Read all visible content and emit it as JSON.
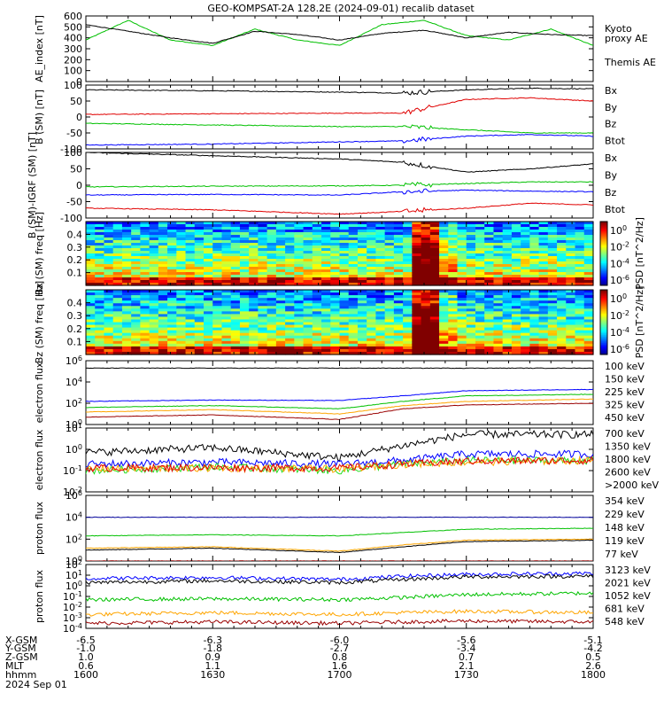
{
  "title": "GEO-KOMPSAT-2A 128.2E (2024-09-01) recalib dataset",
  "colors": {
    "black": "#000000",
    "blue": "#0000ff",
    "green": "#00c000",
    "red": "#e00000",
    "orange": "#ffa500",
    "darkred": "#9a0000",
    "lightgreen": "#22dd22",
    "navy": "#00009a"
  },
  "chart_data": [
    {
      "id": "ae",
      "type": "line",
      "ylabel": "AE_index [nT]",
      "ylim": [
        0,
        600
      ],
      "yticks": [
        "600",
        "500",
        "400",
        "300",
        "200",
        "100",
        "0"
      ],
      "series": [
        {
          "name": "Kyoto proxy AE",
          "color": "#00c000",
          "x": [
            1600,
            1610,
            1620,
            1630,
            1640,
            1650,
            1700,
            1710,
            1720,
            1730,
            1740,
            1750,
            1760,
            1770,
            1780,
            1790,
            1800
          ],
          "values": [
            380,
            560,
            380,
            330,
            480,
            380,
            330,
            520,
            560,
            420,
            380,
            480,
            330,
            300,
            430,
            520,
            380
          ]
        },
        {
          "name": "Themis AE",
          "color": "#000000",
          "x": [
            1600,
            1610,
            1620,
            1630,
            1640,
            1650,
            1700,
            1710,
            1720,
            1730,
            1740,
            1750,
            1760,
            1770,
            1780,
            1790,
            1800
          ],
          "values": [
            520,
            460,
            400,
            350,
            460,
            430,
            380,
            440,
            470,
            400,
            450,
            430,
            420,
            440,
            430,
            440,
            600
          ]
        }
      ],
      "legend": [
        "Kyoto",
        "proxy AE",
        "Themis AE"
      ]
    },
    {
      "id": "bsm",
      "type": "line",
      "ylabel": "B (SM) [nT]",
      "ylim": [
        -100,
        100
      ],
      "yticks": [
        "100",
        "50",
        "0",
        "-50",
        "-100"
      ],
      "series": [
        {
          "name": "Bx",
          "color": "#000000",
          "x": [
            1600,
            1630,
            1700,
            1715,
            1730,
            1745,
            1800
          ],
          "values": [
            85,
            82,
            78,
            75,
            85,
            90,
            88
          ]
        },
        {
          "name": "By",
          "color": "#e00000",
          "x": [
            1600,
            1630,
            1700,
            1715,
            1730,
            1745,
            1800
          ],
          "values": [
            8,
            10,
            12,
            12,
            55,
            60,
            50
          ]
        },
        {
          "name": "Bz",
          "color": "#00c000",
          "x": [
            1600,
            1630,
            1700,
            1715,
            1730,
            1745,
            1800
          ],
          "values": [
            -20,
            -25,
            -30,
            -30,
            -40,
            -50,
            -50
          ]
        },
        {
          "name": "Btot",
          "color": "#0000ff",
          "x": [
            1600,
            1630,
            1700,
            1715,
            1730,
            1745,
            1800
          ],
          "values": [
            -88,
            -85,
            -78,
            -75,
            -60,
            -55,
            -60
          ]
        }
      ],
      "legend": [
        "Bx",
        "By",
        "Bz",
        "Btot"
      ]
    },
    {
      "id": "bsmigrf",
      "type": "line",
      "ylabel": "B (SM)-IGRF (SM) [nT]",
      "ylim": [
        -100,
        100
      ],
      "yticks": [
        "100",
        "50",
        "0",
        "-50",
        "-100"
      ],
      "series": [
        {
          "name": "Bx",
          "color": "#000000",
          "x": [
            1600,
            1630,
            1700,
            1715,
            1730,
            1745,
            1800
          ],
          "values": [
            100,
            90,
            80,
            70,
            40,
            50,
            65
          ]
        },
        {
          "name": "By",
          "color": "#00c000",
          "x": [
            1600,
            1630,
            1700,
            1715,
            1730,
            1745,
            1800
          ],
          "values": [
            -5,
            -3,
            -2,
            0,
            5,
            10,
            10
          ]
        },
        {
          "name": "Bz",
          "color": "#0000ff",
          "x": [
            1600,
            1630,
            1700,
            1715,
            1730,
            1745,
            1800
          ],
          "values": [
            -30,
            -28,
            -30,
            -20,
            -15,
            -18,
            -20
          ]
        },
        {
          "name": "Btot",
          "color": "#e00000",
          "x": [
            1600,
            1630,
            1700,
            1715,
            1730,
            1745,
            1800
          ],
          "values": [
            -70,
            -75,
            -88,
            -80,
            -70,
            -55,
            -60
          ]
        }
      ],
      "legend": [
        "Bx",
        "By",
        "Bz",
        "Btot"
      ]
    },
    {
      "id": "spec1",
      "type": "heatmap",
      "ylabel": "Bx (SM) freq [Hz]",
      "ylim": [
        0,
        0.5
      ],
      "yticks": [
        "0.4",
        "0.3",
        "0.2",
        "0.1"
      ],
      "colorbar": {
        "label": "PSD [nT^2/Hz]",
        "ticks": [
          "10^0",
          "10^-2",
          "10^-4",
          "10^-6"
        ]
      }
    },
    {
      "id": "spec2",
      "type": "heatmap",
      "ylabel": "Bz (SM) freq [Hz]",
      "ylim": [
        0,
        0.5
      ],
      "yticks": [
        "0.4",
        "0.3",
        "0.2",
        "0.1"
      ],
      "colorbar": {
        "label": "PSD [nT^2/Hz]",
        "ticks": [
          "10^0",
          "10^-2",
          "10^-4",
          "10^-6"
        ]
      }
    },
    {
      "id": "eflux1",
      "type": "line",
      "scale": "log",
      "ylabel": "electron flux",
      "ylim": [
        1,
        1000000
      ],
      "yticks": [
        "10^6",
        "10^4",
        "10^2",
        "10^0"
      ],
      "series": [
        {
          "name": "100 keV",
          "color": "#000000",
          "x": [
            1600,
            1630,
            1700,
            1715,
            1730,
            1800
          ],
          "values": [
            200000,
            200000,
            200000,
            200000,
            200000,
            200000
          ]
        },
        {
          "name": "150 keV",
          "color": "#0000ff",
          "x": [
            1600,
            1630,
            1700,
            1715,
            1730,
            1800
          ],
          "values": [
            150,
            200,
            180,
            500,
            1500,
            2000
          ]
        },
        {
          "name": "225 keV",
          "color": "#00c000",
          "x": [
            1600,
            1630,
            1700,
            1715,
            1730,
            1800
          ],
          "values": [
            40,
            60,
            30,
            150,
            500,
            700
          ]
        },
        {
          "name": "325 keV",
          "color": "#ffa500",
          "x": [
            1600,
            1630,
            1700,
            1715,
            1730,
            1800
          ],
          "values": [
            15,
            25,
            10,
            60,
            150,
            250
          ]
        },
        {
          "name": "450 keV",
          "color": "#9a0000",
          "x": [
            1600,
            1630,
            1700,
            1715,
            1730,
            1800
          ],
          "values": [
            5,
            8,
            3,
            30,
            70,
            100
          ]
        }
      ],
      "legend": [
        "100 keV",
        "150 keV",
        "225 keV",
        "325 keV",
        "450 keV"
      ]
    },
    {
      "id": "eflux2",
      "type": "line",
      "scale": "log",
      "ylabel": "electron flux",
      "ylim": [
        0.01,
        10
      ],
      "yticks": [
        "10^1",
        "10^0",
        "10^-1",
        "10^-2"
      ],
      "series": [
        {
          "name": "700 keV",
          "color": "#000000",
          "x": [
            1600,
            1630,
            1700,
            1715,
            1730,
            1800
          ],
          "values": [
            0.7,
            1.2,
            0.4,
            1.5,
            5,
            5
          ]
        },
        {
          "name": "1350 keV",
          "color": "#0000ff",
          "x": [
            1600,
            1630,
            1700,
            1715,
            1730,
            1800
          ],
          "values": [
            0.2,
            0.25,
            0.2,
            0.3,
            0.6,
            0.6
          ]
        },
        {
          "name": "1800 keV",
          "color": "#22dd22",
          "x": [
            1600,
            1630,
            1700,
            1715,
            1730,
            1800
          ],
          "values": [
            0.1,
            0.15,
            0.1,
            0.2,
            0.3,
            0.3
          ]
        },
        {
          "name": "2600 keV",
          "color": "#ffa500",
          "x": [
            1600,
            1630,
            1700,
            1715,
            1730,
            1800
          ],
          "values": [
            0.12,
            0.13,
            0.12,
            0.2,
            0.25,
            0.3
          ]
        },
        {
          "name": ">2000 keV",
          "color": "#e00000",
          "x": [
            1600,
            1630,
            1700,
            1715,
            1730,
            1800
          ],
          "values": [
            0.13,
            0.14,
            0.13,
            0.2,
            0.28,
            0.3
          ]
        }
      ],
      "legend": [
        "700 keV",
        "1350 keV",
        "1800 keV",
        "2600 keV",
        ">2000 keV"
      ]
    },
    {
      "id": "pflux1",
      "type": "line",
      "scale": "log",
      "ylabel": "proton flux",
      "ylim": [
        1,
        1000000
      ],
      "yticks": [
        "10^6",
        "10^4",
        "10^2",
        "10^0"
      ],
      "series": [
        {
          "name": "354 keV",
          "color": "#9a0000",
          "x": [
            1600,
            1630,
            1700,
            1715,
            1730,
            1800
          ],
          "values": [
            1,
            1,
            1,
            1,
            1,
            1
          ]
        },
        {
          "name": "229 keV",
          "color": "#ffa500",
          "x": [
            1600,
            1630,
            1700,
            1715,
            1730,
            1800
          ],
          "values": [
            15,
            20,
            8,
            30,
            80,
            100
          ]
        },
        {
          "name": "148 keV",
          "color": "#00c000",
          "x": [
            1600,
            1630,
            1700,
            1715,
            1730,
            1800
          ],
          "values": [
            200,
            250,
            200,
            400,
            800,
            1000
          ]
        },
        {
          "name": "119 keV",
          "color": "#00009a",
          "x": [
            1600,
            1630,
            1700,
            1715,
            1730,
            1800
          ],
          "values": [
            10000,
            10000,
            10000,
            10000,
            10000,
            10000
          ]
        },
        {
          "name": "77 keV",
          "color": "#000000",
          "x": [
            1600,
            1630,
            1700,
            1715,
            1730,
            1800
          ],
          "values": [
            10,
            15,
            6,
            20,
            60,
            80
          ]
        }
      ],
      "legend": [
        "354 keV",
        "229 keV",
        "148 keV",
        "119 keV",
        "77 keV"
      ]
    },
    {
      "id": "pflux2",
      "type": "line",
      "scale": "log",
      "ylabel": "proton flux",
      "ylim": [
        0.0001,
        100
      ],
      "yticks": [
        "10^2",
        "10^1",
        "10^0",
        "10^-1",
        "10^-2",
        "10^-3",
        "10^-4"
      ],
      "series": [
        {
          "name": "3123 keV",
          "color": "#9a0000",
          "x": [
            1600,
            1630,
            1700,
            1715,
            1730,
            1800
          ],
          "values": [
            0.0003,
            0.0004,
            0.0003,
            0.0004,
            0.0005,
            0.0004
          ]
        },
        {
          "name": "2021 keV",
          "color": "#ffa500",
          "x": [
            1600,
            1630,
            1700,
            1715,
            1730,
            1800
          ],
          "values": [
            0.002,
            0.003,
            0.002,
            0.003,
            0.004,
            0.003
          ]
        },
        {
          "name": "1052 keV",
          "color": "#00c000",
          "x": [
            1600,
            1630,
            1700,
            1715,
            1730,
            1800
          ],
          "values": [
            0.05,
            0.06,
            0.05,
            0.08,
            0.15,
            0.2
          ]
        },
        {
          "name": "681 keV",
          "color": "#0000ff",
          "x": [
            1600,
            1630,
            1700,
            1715,
            1730,
            1800
          ],
          "values": [
            5,
            6,
            4,
            8,
            12,
            15
          ]
        },
        {
          "name": "548 keV",
          "color": "#000000",
          "x": [
            1600,
            1630,
            1700,
            1715,
            1730,
            1800
          ],
          "values": [
            2,
            3,
            2,
            4,
            7,
            8
          ]
        }
      ],
      "legend": [
        "3123 keV",
        "2021 keV",
        "1052 keV",
        "681 keV",
        "548 keV"
      ]
    }
  ],
  "xaxis": {
    "xlim": [
      1600,
      1800
    ],
    "tick_x": [
      1600,
      1630,
      1700,
      1730,
      1800
    ],
    "rows": [
      {
        "label": "X-GSM",
        "values": [
          "-6.5",
          "-6.3",
          "-6.0",
          "-5.6",
          "-5.1"
        ]
      },
      {
        "label": "Y-GSM",
        "values": [
          "-1.0",
          "-1.8",
          "-2.7",
          "-3.4",
          "-4.2"
        ]
      },
      {
        "label": "Z-GSM",
        "values": [
          "1.0",
          "0.9",
          "0.8",
          "0.7",
          "0.5"
        ]
      },
      {
        "label": "MLT",
        "values": [
          "0.6",
          "1.1",
          "1.6",
          "2.1",
          "2.6"
        ]
      },
      {
        "label": "hhmm",
        "values": [
          "1600",
          "1630",
          "1700",
          "1730",
          "1800"
        ]
      }
    ],
    "date": "2024 Sep 01"
  }
}
